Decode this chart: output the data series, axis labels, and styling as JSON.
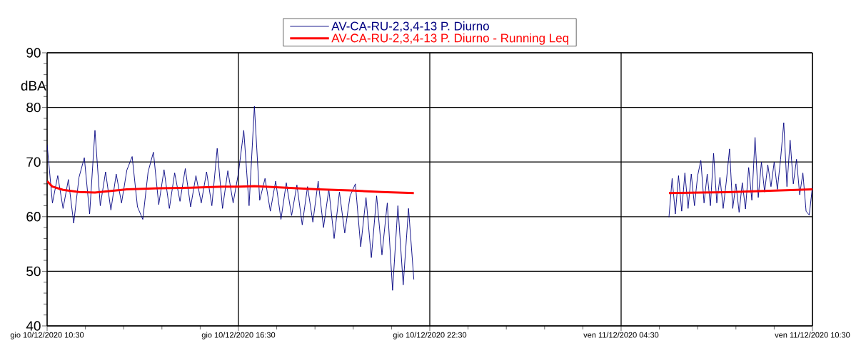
{
  "chart_data": {
    "type": "line",
    "ylabel": "dBA",
    "xlim": [
      "2020-12-10T10:30",
      "2020-12-11T10:30"
    ],
    "xticks": [
      {
        "value": "2020-12-10T10:30",
        "label": "gio 10/12/2020 10:30"
      },
      {
        "value": "2020-12-10T16:30",
        "label": "gio 10/12/2020 16:30"
      },
      {
        "value": "2020-12-10T22:30",
        "label": "gio 10/12/2020 22:30"
      },
      {
        "value": "2020-12-11T04:30",
        "label": "ven 11/12/2020 04:30"
      },
      {
        "value": "2020-12-11T10:30",
        "label": "ven 11/12/2020 10:30"
      }
    ],
    "ylim": [
      40,
      90
    ],
    "yticks": [
      40,
      50,
      60,
      70,
      80,
      90
    ],
    "grid": true,
    "legend": "top",
    "series": [
      {
        "name": "AV-CA-RU-2,3,4-13 P. Diurno",
        "color": "#000080",
        "x": [
          "2020-12-10T10:30",
          "2020-12-10T10:40",
          "2020-12-10T10:50",
          "2020-12-10T11:00",
          "2020-12-10T11:10",
          "2020-12-10T11:20",
          "2020-12-10T11:30",
          "2020-12-10T11:40",
          "2020-12-10T11:50",
          "2020-12-10T12:00",
          "2020-12-10T12:10",
          "2020-12-10T12:20",
          "2020-12-10T12:30",
          "2020-12-10T12:40",
          "2020-12-10T12:50",
          "2020-12-10T13:00",
          "2020-12-10T13:10",
          "2020-12-10T13:20",
          "2020-12-10T13:30",
          "2020-12-10T13:40",
          "2020-12-10T13:50",
          "2020-12-10T14:00",
          "2020-12-10T14:10",
          "2020-12-10T14:20",
          "2020-12-10T14:30",
          "2020-12-10T14:40",
          "2020-12-10T14:50",
          "2020-12-10T15:00",
          "2020-12-10T15:10",
          "2020-12-10T15:20",
          "2020-12-10T15:30",
          "2020-12-10T15:40",
          "2020-12-10T15:50",
          "2020-12-10T16:00",
          "2020-12-10T16:10",
          "2020-12-10T16:20",
          "2020-12-10T16:30",
          "2020-12-10T16:40",
          "2020-12-10T16:50",
          "2020-12-10T17:00",
          "2020-12-10T17:10",
          "2020-12-10T17:20",
          "2020-12-10T17:30",
          "2020-12-10T17:40",
          "2020-12-10T17:50",
          "2020-12-10T18:00",
          "2020-12-10T18:10",
          "2020-12-10T18:20",
          "2020-12-10T18:30",
          "2020-12-10T18:40",
          "2020-12-10T18:50",
          "2020-12-10T19:00",
          "2020-12-10T19:10",
          "2020-12-10T19:20",
          "2020-12-10T19:30",
          "2020-12-10T19:40",
          "2020-12-10T19:50",
          "2020-12-10T20:00",
          "2020-12-10T20:10",
          "2020-12-10T20:20",
          "2020-12-10T20:30",
          "2020-12-10T20:40",
          "2020-12-10T20:50",
          "2020-12-10T21:00",
          "2020-12-10T21:10",
          "2020-12-10T21:20",
          "2020-12-10T21:30",
          "2020-12-10T21:40",
          "2020-12-10T21:50",
          "2020-12-10T22:00",
          "2020-12-11T02:00",
          "2020-12-11T06:00",
          "2020-12-11T06:06",
          "2020-12-11T06:12",
          "2020-12-11T06:18",
          "2020-12-11T06:24",
          "2020-12-11T06:30",
          "2020-12-11T06:36",
          "2020-12-11T06:42",
          "2020-12-11T06:48",
          "2020-12-11T06:54",
          "2020-12-11T07:00",
          "2020-12-11T07:06",
          "2020-12-11T07:12",
          "2020-12-11T07:18",
          "2020-12-11T07:24",
          "2020-12-11T07:30",
          "2020-12-11T07:36",
          "2020-12-11T07:42",
          "2020-12-11T07:48",
          "2020-12-11T07:54",
          "2020-12-11T08:00",
          "2020-12-11T08:06",
          "2020-12-11T08:12",
          "2020-12-11T08:18",
          "2020-12-11T08:24",
          "2020-12-11T08:30",
          "2020-12-11T08:36",
          "2020-12-11T08:42",
          "2020-12-11T08:48",
          "2020-12-11T08:54",
          "2020-12-11T09:00",
          "2020-12-11T09:06",
          "2020-12-11T09:12",
          "2020-12-11T09:18",
          "2020-12-11T09:24",
          "2020-12-11T09:30",
          "2020-12-11T09:36",
          "2020-12-11T09:42",
          "2020-12-11T09:48",
          "2020-12-11T09:54",
          "2020-12-11T10:00",
          "2020-12-11T10:06",
          "2020-12-11T10:12",
          "2020-12-11T10:18",
          "2020-12-11T10:24",
          "2020-12-11T10:30"
        ],
        "values": [
          73.2,
          62.5,
          67.5,
          61.5,
          66.8,
          58.8,
          67.2,
          70.8,
          60.5,
          75.8,
          62.0,
          68.2,
          61.2,
          67.8,
          62.5,
          68.5,
          71.0,
          61.8,
          59.5,
          68.2,
          71.8,
          62.2,
          68.6,
          61.5,
          68.0,
          62.8,
          68.8,
          61.8,
          67.5,
          62.5,
          68.2,
          62.0,
          72.5,
          61.5,
          68.4,
          62.5,
          68.0,
          75.8,
          62.0,
          80.2,
          63.0,
          67.0,
          61.0,
          66.5,
          59.5,
          66.2,
          60.2,
          65.8,
          58.5,
          65.5,
          59.0,
          66.5,
          58.0,
          65.0,
          56.0,
          64.5,
          57.0,
          63.8,
          66.0,
          54.5,
          63.5,
          52.5,
          63.8,
          53.0,
          62.5,
          46.5,
          62.0,
          47.5,
          61.5,
          48.5,
          null,
          59.9,
          67.0,
          60.5,
          67.5,
          61.0,
          68.0,
          61.5,
          67.8,
          62.0,
          67.5,
          70.3,
          62.5,
          67.8,
          62.0,
          71.6,
          62.5,
          67.2,
          61.5,
          66.5,
          72.4,
          61.5,
          66.0,
          60.8,
          66.2,
          61.4,
          69.0,
          63.0,
          74.5,
          63.5,
          70.0,
          64.5,
          69.5,
          65.5,
          70.0,
          65.0,
          70.5,
          77.2,
          65.5,
          74.0,
          66.0,
          70.5,
          64.0,
          68.0,
          61.0,
          60.3,
          65.5
        ]
      },
      {
        "name": "AV-CA-RU-2,3,4-13 P. Diurno - Running Leq",
        "color": "#ff0000",
        "x": [
          "2020-12-10T10:30",
          "2020-12-10T10:40",
          "2020-12-10T11:00",
          "2020-12-10T11:30",
          "2020-12-10T12:00",
          "2020-12-10T12:30",
          "2020-12-10T13:00",
          "2020-12-10T14:00",
          "2020-12-10T15:00",
          "2020-12-10T16:00",
          "2020-12-10T16:30",
          "2020-12-10T17:00",
          "2020-12-10T18:00",
          "2020-12-10T19:00",
          "2020-12-10T20:00",
          "2020-12-10T21:00",
          "2020-12-10T22:00",
          "2020-12-11T02:00",
          "2020-12-11T06:00",
          "2020-12-11T07:00",
          "2020-12-11T08:00",
          "2020-12-11T09:00",
          "2020-12-11T10:30"
        ],
        "values": [
          66.5,
          65.5,
          64.9,
          64.5,
          64.4,
          64.7,
          65.0,
          65.2,
          65.3,
          65.5,
          65.5,
          65.6,
          65.3,
          65.0,
          64.8,
          64.5,
          64.3,
          null,
          64.3,
          64.4,
          64.5,
          64.7,
          65.0
        ]
      }
    ]
  }
}
